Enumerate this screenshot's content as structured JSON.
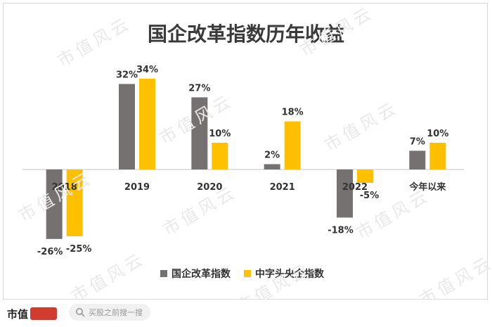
{
  "chart_data": {
    "type": "bar",
    "title": "国企改革指数历年收益",
    "categories": [
      "2018",
      "2019",
      "2020",
      "2021",
      "2022",
      "今年以来"
    ],
    "series": [
      {
        "name": "国企改革指数",
        "values": [
          -26,
          32,
          27,
          2,
          -18,
          7
        ],
        "labels": [
          "-26%",
          "32%",
          "27%",
          "2%",
          "-18%",
          "7%"
        ],
        "color": "#767171"
      },
      {
        "name": "中字头央企指数",
        "values": [
          -25,
          34,
          10,
          18,
          -5,
          10
        ],
        "labels": [
          "-25%",
          "34%",
          "10%",
          "18%",
          "-5%",
          "10%"
        ],
        "color": "#ffc000"
      }
    ],
    "ylim": [
      -30,
      38
    ],
    "grid": false,
    "legend": "bottom"
  },
  "watermark": "市值风云",
  "footer": {
    "brand": "市值",
    "search_placeholder": "买股之前搜一搜"
  },
  "colors": {
    "text": "#333333",
    "axis": "#d9d9d9",
    "brand_red": "#d23b2f"
  }
}
